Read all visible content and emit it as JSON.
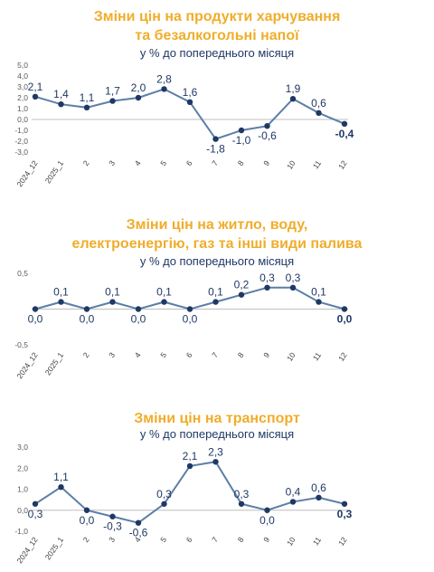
{
  "colors": {
    "title": "#f0ad2b",
    "line": "#5b7fa6",
    "marker": "#1f3864",
    "axis": "#bfbfbf"
  },
  "chart_data": [
    {
      "type": "line",
      "title_line1": "Зміни цін на продукти харчування",
      "title_line2": "та безалкогольні напої",
      "subtitle": "у % до попереднього місяця",
      "categories": [
        "2024_12",
        "2025_1",
        "2",
        "3",
        "4",
        "5",
        "6",
        "7",
        "8",
        "9",
        "10",
        "11",
        "12"
      ],
      "values": [
        2.1,
        1.4,
        1.1,
        1.7,
        2.0,
        2.8,
        1.6,
        -1.8,
        -1.0,
        -0.6,
        1.9,
        0.6,
        -0.4
      ],
      "labels": [
        "2,1",
        "1,4",
        "1,1",
        "1,7",
        "2,0",
        "2,8",
        "1,6",
        "-1,8",
        "-1,0",
        "-0,6",
        "1,9",
        "0,6",
        "-0,4"
      ],
      "yticks": [
        "5,0",
        "4,0",
        "3,0",
        "2,0",
        "1,0",
        "0,0",
        "-1,0",
        "-2,0",
        "-3,0"
      ],
      "ylim": [
        -3,
        5
      ],
      "xlabel": "",
      "ylabel": ""
    },
    {
      "type": "line",
      "title_line1": "Зміни цін на житло, воду,",
      "title_line2": "електроенергію, газ та інші види палива",
      "subtitle": "у % до попереднього місяця",
      "categories": [
        "2024_12",
        "2025_1",
        "2",
        "3",
        "4",
        "5",
        "6",
        "7",
        "8",
        "9",
        "10",
        "11",
        "12"
      ],
      "values": [
        0.0,
        0.1,
        0.0,
        0.1,
        0.0,
        0.1,
        0.0,
        0.1,
        0.2,
        0.3,
        0.3,
        0.1,
        0.0
      ],
      "labels": [
        "0,0",
        "0,1",
        "0,0",
        "0,1",
        "0,0",
        "0,1",
        "0,0",
        "0,1",
        "0,2",
        "0,3",
        "0,3",
        "0,1",
        "0,0"
      ],
      "yticks": [
        "0,5",
        "-0,5"
      ],
      "ylim": [
        -0.5,
        0.5
      ],
      "xlabel": "",
      "ylabel": ""
    },
    {
      "type": "line",
      "title_line1": "Зміни цін на транспорт",
      "subtitle": "у % до попереднього місяця",
      "categories": [
        "2024_12",
        "2025_1",
        "2",
        "3",
        "4",
        "5",
        "6",
        "7",
        "8",
        "9",
        "10",
        "11",
        "12"
      ],
      "values": [
        0.3,
        1.1,
        0.0,
        -0.3,
        -0.6,
        0.3,
        2.1,
        2.3,
        0.3,
        0.0,
        0.4,
        0.6,
        0.3
      ],
      "labels": [
        "0,3",
        "1,1",
        "0,0",
        "-0,3",
        "-0,6",
        "0,3",
        "2,1",
        "2,3",
        "0,3",
        "0,0",
        "0,4",
        "0,6",
        "0,3"
      ],
      "yticks": [
        "3,0",
        "2,0",
        "1,0",
        "0,0",
        "-1,0"
      ],
      "ylim": [
        -1,
        3
      ],
      "xlabel": "",
      "ylabel": ""
    }
  ]
}
